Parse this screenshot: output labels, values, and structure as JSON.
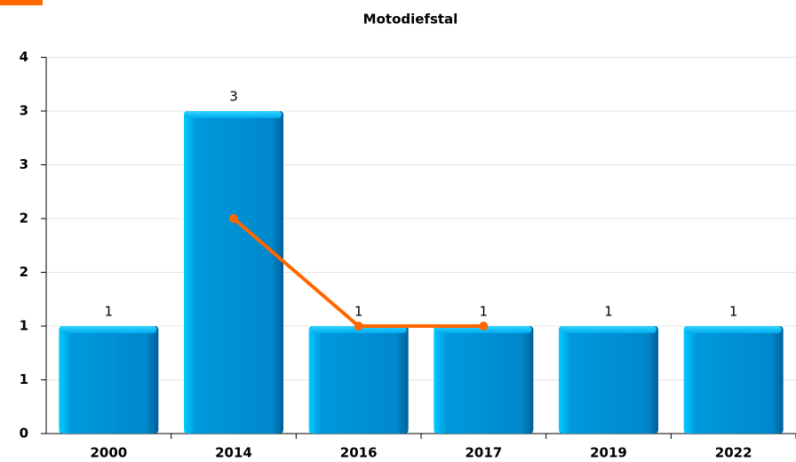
{
  "chart_data": {
    "type": "bar",
    "title": "Motodiefstal",
    "categories": [
      "2000",
      "2014",
      "2016",
      "2017",
      "2019",
      "2022"
    ],
    "series": [
      {
        "type": "bar",
        "color": "#0088cc",
        "values": [
          1,
          3,
          1,
          1,
          1,
          1
        ]
      },
      {
        "type": "line",
        "color": "#ff6600",
        "values": [
          null,
          2,
          1,
          1,
          null,
          null
        ]
      }
    ],
    "ylim": [
      0,
      3.5
    ],
    "yticks": [
      0,
      {
        "value": 0.5,
        "label": "1"
      },
      1,
      {
        "value": 1.5,
        "label": "2"
      },
      2,
      {
        "value": 2.5,
        "label": "3"
      },
      3,
      {
        "value": 3.5,
        "label": "4"
      }
    ],
    "grid": true
  }
}
